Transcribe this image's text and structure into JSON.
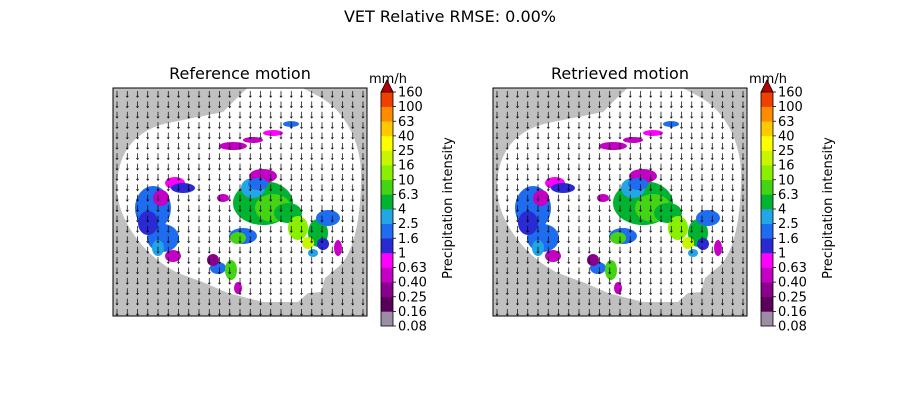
{
  "figure": {
    "suptitle": "VET Relative RMSE: 0.00%"
  },
  "chart_data": [
    {
      "type": "heatmap",
      "title": "Reference motion",
      "overlay": "motion-vector-arrows",
      "xlabel": "",
      "ylabel": "",
      "colorbar": {
        "unit": "mm/h",
        "label": "Precipitation intensity",
        "extend": "max",
        "ticks": [
          "0.08",
          "0.16",
          "0.25",
          "0.40",
          "0.63",
          "1",
          "1.6",
          "2.5",
          "4",
          "6.3",
          "10",
          "16",
          "25",
          "40",
          "63",
          "100",
          "160"
        ],
        "colors": [
          "#9c8ca4",
          "#58005a",
          "#8a008c",
          "#c400c4",
          "#ff00ff",
          "#2a2ad4",
          "#1e6cf0",
          "#22a6e6",
          "#00b432",
          "#44d414",
          "#88f000",
          "#c8f500",
          "#ffff00",
          "#ffc800",
          "#ff8c00",
          "#f04000"
        ],
        "extend_color": "#b40000"
      }
    },
    {
      "type": "heatmap",
      "title": "Retrieved motion",
      "overlay": "motion-vector-arrows",
      "xlabel": "",
      "ylabel": "",
      "colorbar": {
        "unit": "mm/h",
        "label": "Precipitation intensity",
        "extend": "max",
        "ticks": [
          "0.08",
          "0.16",
          "0.25",
          "0.40",
          "0.63",
          "1",
          "1.6",
          "2.5",
          "4",
          "6.3",
          "10",
          "16",
          "25",
          "40",
          "63",
          "100",
          "160"
        ],
        "colors": [
          "#9c8ca4",
          "#58005a",
          "#8a008c",
          "#c400c4",
          "#ff00ff",
          "#2a2ad4",
          "#1e6cf0",
          "#22a6e6",
          "#00b432",
          "#44d414",
          "#88f000",
          "#c8f500",
          "#ffff00",
          "#ffc800",
          "#ff8c00",
          "#f04000"
        ],
        "extend_color": "#b40000"
      }
    }
  ],
  "colors": {
    "background_outside_radar": "#c0c0c0",
    "radar_domain": "#ffffff",
    "arrow": "#000000"
  }
}
